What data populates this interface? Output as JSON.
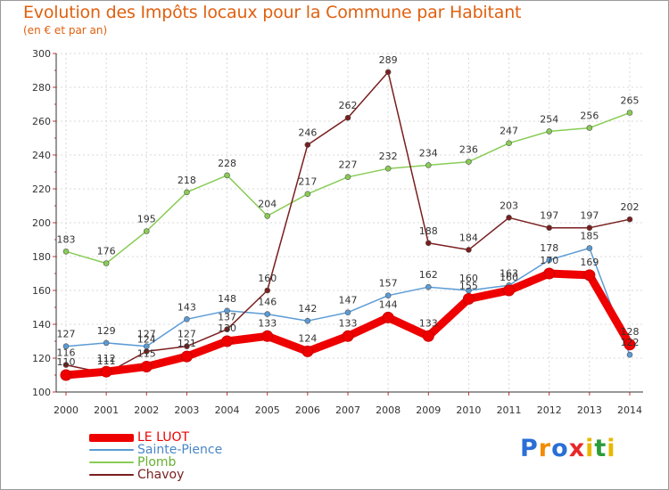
{
  "chart_data": {
    "type": "line",
    "title": "Evolution des Impôts locaux pour la Commune par Habitant",
    "subtitle": "(en € et par an)",
    "xlabel": "",
    "ylabel": "",
    "x": [
      "2000",
      "2001",
      "2002",
      "2003",
      "2004",
      "2005",
      "2006",
      "2007",
      "2008",
      "2009",
      "2010",
      "2011",
      "2012",
      "2013",
      "2014"
    ],
    "ylim": [
      100,
      300
    ],
    "yticks": [
      "100",
      "120",
      "140",
      "160",
      "180",
      "200",
      "220",
      "240",
      "260",
      "280",
      "300"
    ],
    "grid": true,
    "legend_position": "bottom-left",
    "series": [
      {
        "name": "LE LUOT",
        "color": "#ee0000",
        "values": [
          110,
          112,
          115,
          121,
          130,
          133,
          124,
          133,
          144,
          133,
          155,
          160,
          170,
          169,
          128
        ]
      },
      {
        "name": "Sainte-Pience",
        "color": "#5b9bd5",
        "values": [
          127,
          129,
          127,
          143,
          148,
          146,
          142,
          147,
          157,
          162,
          160,
          163,
          178,
          185,
          122
        ]
      },
      {
        "name": "Plomb",
        "color": "#88cc55",
        "values": [
          183,
          176,
          195,
          218,
          228,
          204,
          217,
          227,
          232,
          234,
          236,
          247,
          254,
          256,
          265
        ]
      },
      {
        "name": "Chavoy",
        "color": "#7a1e1e",
        "values": [
          116,
          111,
          124,
          127,
          137,
          160,
          246,
          262,
          289,
          188,
          184,
          203,
          197,
          197,
          202
        ]
      }
    ]
  },
  "logo": {
    "letters": [
      "P",
      "r",
      "o",
      "x",
      "i",
      "t",
      "i"
    ],
    "colors": [
      "#2a6fd6",
      "#f28c00",
      "#2a6fd6",
      "#e8282a",
      "#e8b800",
      "#2a9d3a",
      "#e8b800"
    ]
  }
}
